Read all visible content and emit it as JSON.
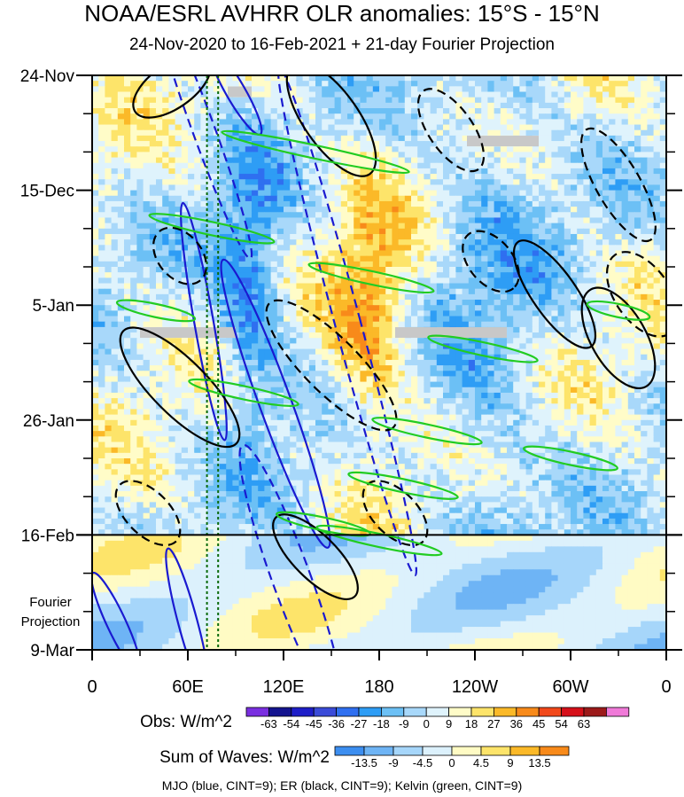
{
  "chart_data": {
    "type": "heatmap",
    "title": "NOAA/ESRL AVHRR OLR anomalies: 15°S - 15°N",
    "subtitle": "24-Nov-2020 to 16-Feb-2021 + 21-day Fourier Projection",
    "x_ticks": [
      "0",
      "60E",
      "120E",
      "180",
      "120W",
      "60W",
      "0"
    ],
    "x_tick_values": [
      0,
      60,
      120,
      180,
      240,
      300,
      360
    ],
    "y_ticks": [
      "24-Nov",
      "15-Dec",
      "5-Jan",
      "26-Jan",
      "16-Feb",
      "9-Mar"
    ],
    "y_tick_days": [
      0,
      21,
      42,
      63,
      84,
      105
    ],
    "projection_label": [
      "Fourier",
      "Projection"
    ],
    "observed_end_day": 84,
    "xlim": [
      0,
      360
    ],
    "ylim_days": [
      0,
      105
    ],
    "obs_colorbar": {
      "label": "Obs: W/m^2",
      "levels": [
        "-63",
        "-54",
        "-45",
        "-36",
        "-27",
        "-18",
        "-9",
        "0",
        "9",
        "18",
        "27",
        "36",
        "45",
        "54",
        "63"
      ],
      "colors": [
        "#7a2fe0",
        "#14148f",
        "#1e1ec8",
        "#3a4bd8",
        "#2f6ff0",
        "#2e9df5",
        "#6cc0f5",
        "#a8d8fa",
        "#dff3fc",
        "#fffcc8",
        "#fde46a",
        "#fbb928",
        "#f88a1a",
        "#f2481a",
        "#d6101a",
        "#9c1a1a",
        "#f07ad8"
      ]
    },
    "wave_colorbar": {
      "label": "Sum of Waves: W/m^2",
      "levels": [
        "-13.5",
        "-9",
        "-4.5",
        "0",
        "4.5",
        "9",
        "13.5"
      ],
      "colors": [
        "#3c8ef0",
        "#6eb4f5",
        "#a6d6fa",
        "#dcf1fc",
        "#fffbc4",
        "#fde46a",
        "#fbb928",
        "#f88a1a"
      ]
    },
    "caption": "MJO (blue, CINT=9); ER (black, CINT=9); Kelvin (green, CINT=9)",
    "contours": {
      "MJO": {
        "color": "#1a1ad0",
        "features": [
          {
            "lon": 90,
            "day": 3,
            "dlon": 6,
            "dday": 9,
            "tilt": -30,
            "neg": false
          },
          {
            "lon": 70,
            "day": 10,
            "dlon": 7,
            "dday": 25,
            "tilt": -20,
            "neg": true
          },
          {
            "lon": 70,
            "day": 45,
            "dlon": 6,
            "dday": 22,
            "tilt": -10,
            "neg": false
          },
          {
            "lon": 115,
            "day": 60,
            "dlon": 10,
            "dday": 28,
            "tilt": -20,
            "neg": false
          },
          {
            "lon": 160,
            "day": 45,
            "dlon": 8,
            "dday": 48,
            "tilt": -15,
            "neg": true
          },
          {
            "lon": 125,
            "day": 92,
            "dlon": 12,
            "dday": 26,
            "tilt": -20,
            "neg": true
          },
          {
            "lon": 60,
            "day": 100,
            "dlon": 6,
            "dday": 14,
            "tilt": -15,
            "neg": false
          },
          {
            "lon": 15,
            "day": 100,
            "dlon": 6,
            "dday": 10,
            "tilt": -25,
            "neg": false
          }
        ]
      },
      "ER": {
        "color": "#000000",
        "features": [
          {
            "lon": 50,
            "day": 2,
            "dlon": 28,
            "dday": 4,
            "tilt": -35,
            "neg": false
          },
          {
            "lon": 150,
            "day": 8,
            "dlon": 42,
            "dday": 5,
            "tilt": 55,
            "neg": false
          },
          {
            "lon": 225,
            "day": 10,
            "dlon": 30,
            "dday": 4,
            "tilt": 55,
            "neg": true
          },
          {
            "lon": 330,
            "day": 20,
            "dlon": 40,
            "dday": 4,
            "tilt": 60,
            "neg": true
          },
          {
            "lon": 290,
            "day": 40,
            "dlon": 40,
            "dday": 4,
            "tilt": 55,
            "neg": false
          },
          {
            "lon": 250,
            "day": 34,
            "dlon": 22,
            "dday": 4,
            "tilt": 50,
            "neg": true
          },
          {
            "lon": 345,
            "day": 40,
            "dlon": 30,
            "dday": 5,
            "tilt": 55,
            "neg": true
          },
          {
            "lon": 55,
            "day": 33,
            "dlon": 20,
            "dday": 4,
            "tilt": 50,
            "neg": true
          },
          {
            "lon": 55,
            "day": 57,
            "dlon": 50,
            "dday": 5,
            "tilt": 45,
            "neg": false
          },
          {
            "lon": 150,
            "day": 53,
            "dlon": 55,
            "dday": 5,
            "tilt": 45,
            "neg": true
          },
          {
            "lon": 35,
            "day": 80,
            "dlon": 25,
            "dday": 4,
            "tilt": 45,
            "neg": true
          },
          {
            "lon": 140,
            "day": 88,
            "dlon": 35,
            "dday": 4,
            "tilt": 45,
            "neg": false
          },
          {
            "lon": 190,
            "day": 80,
            "dlon": 25,
            "dday": 4,
            "tilt": 45,
            "neg": true
          },
          {
            "lon": 330,
            "day": 48,
            "dlon": 35,
            "dday": 5,
            "tilt": 60,
            "neg": false
          }
        ]
      },
      "Kelvin": {
        "color": "#22cc22",
        "features": [
          {
            "lon": 140,
            "day": 14,
            "dlon": 60,
            "dday": 1.2,
            "tilt": 12,
            "neg": false
          },
          {
            "lon": 75,
            "day": 28,
            "dlon": 40,
            "dday": 1.2,
            "tilt": 12,
            "neg": false
          },
          {
            "lon": 175,
            "day": 37,
            "dlon": 40,
            "dday": 1.2,
            "tilt": 12,
            "neg": false
          },
          {
            "lon": 245,
            "day": 50,
            "dlon": 35,
            "dday": 1.2,
            "tilt": 12,
            "neg": false
          },
          {
            "lon": 95,
            "day": 58,
            "dlon": 35,
            "dday": 1.2,
            "tilt": 12,
            "neg": false
          },
          {
            "lon": 210,
            "day": 65,
            "dlon": 35,
            "dday": 1.2,
            "tilt": 12,
            "neg": false
          },
          {
            "lon": 300,
            "day": 70,
            "dlon": 30,
            "dday": 1.2,
            "tilt": 12,
            "neg": false
          },
          {
            "lon": 180,
            "day": 85,
            "dlon": 40,
            "dday": 1.2,
            "tilt": 12,
            "neg": false
          },
          {
            "lon": 195,
            "day": 75,
            "dlon": 35,
            "dday": 1.2,
            "tilt": 12,
            "neg": false
          },
          {
            "lon": 145,
            "day": 82,
            "dlon": 30,
            "dday": 1.2,
            "tilt": 12,
            "neg": false
          },
          {
            "lon": 40,
            "day": 43,
            "dlon": 25,
            "dday": 1.2,
            "tilt": 12,
            "neg": false
          },
          {
            "lon": 330,
            "day": 43,
            "dlon": 20,
            "dday": 1.2,
            "tilt": 12,
            "neg": false
          }
        ]
      }
    },
    "reference_lines": [
      {
        "lon": 72,
        "color": "#0a6a0a",
        "style": "dotted"
      },
      {
        "lon": 79,
        "color": "#0a6a0a",
        "style": "dotted"
      }
    ],
    "missing_data_bars": [
      {
        "lon0": 85,
        "lon1": 100,
        "day": 3,
        "color": "#c8c8c8"
      },
      {
        "lon0": 235,
        "lon1": 280,
        "day": 12,
        "color": "#c8c8c8"
      },
      {
        "lon0": 30,
        "lon1": 90,
        "day": 47,
        "color": "#c8c8c8"
      },
      {
        "lon0": 190,
        "lon1": 260,
        "day": 47,
        "color": "#c8c8c8"
      }
    ]
  }
}
